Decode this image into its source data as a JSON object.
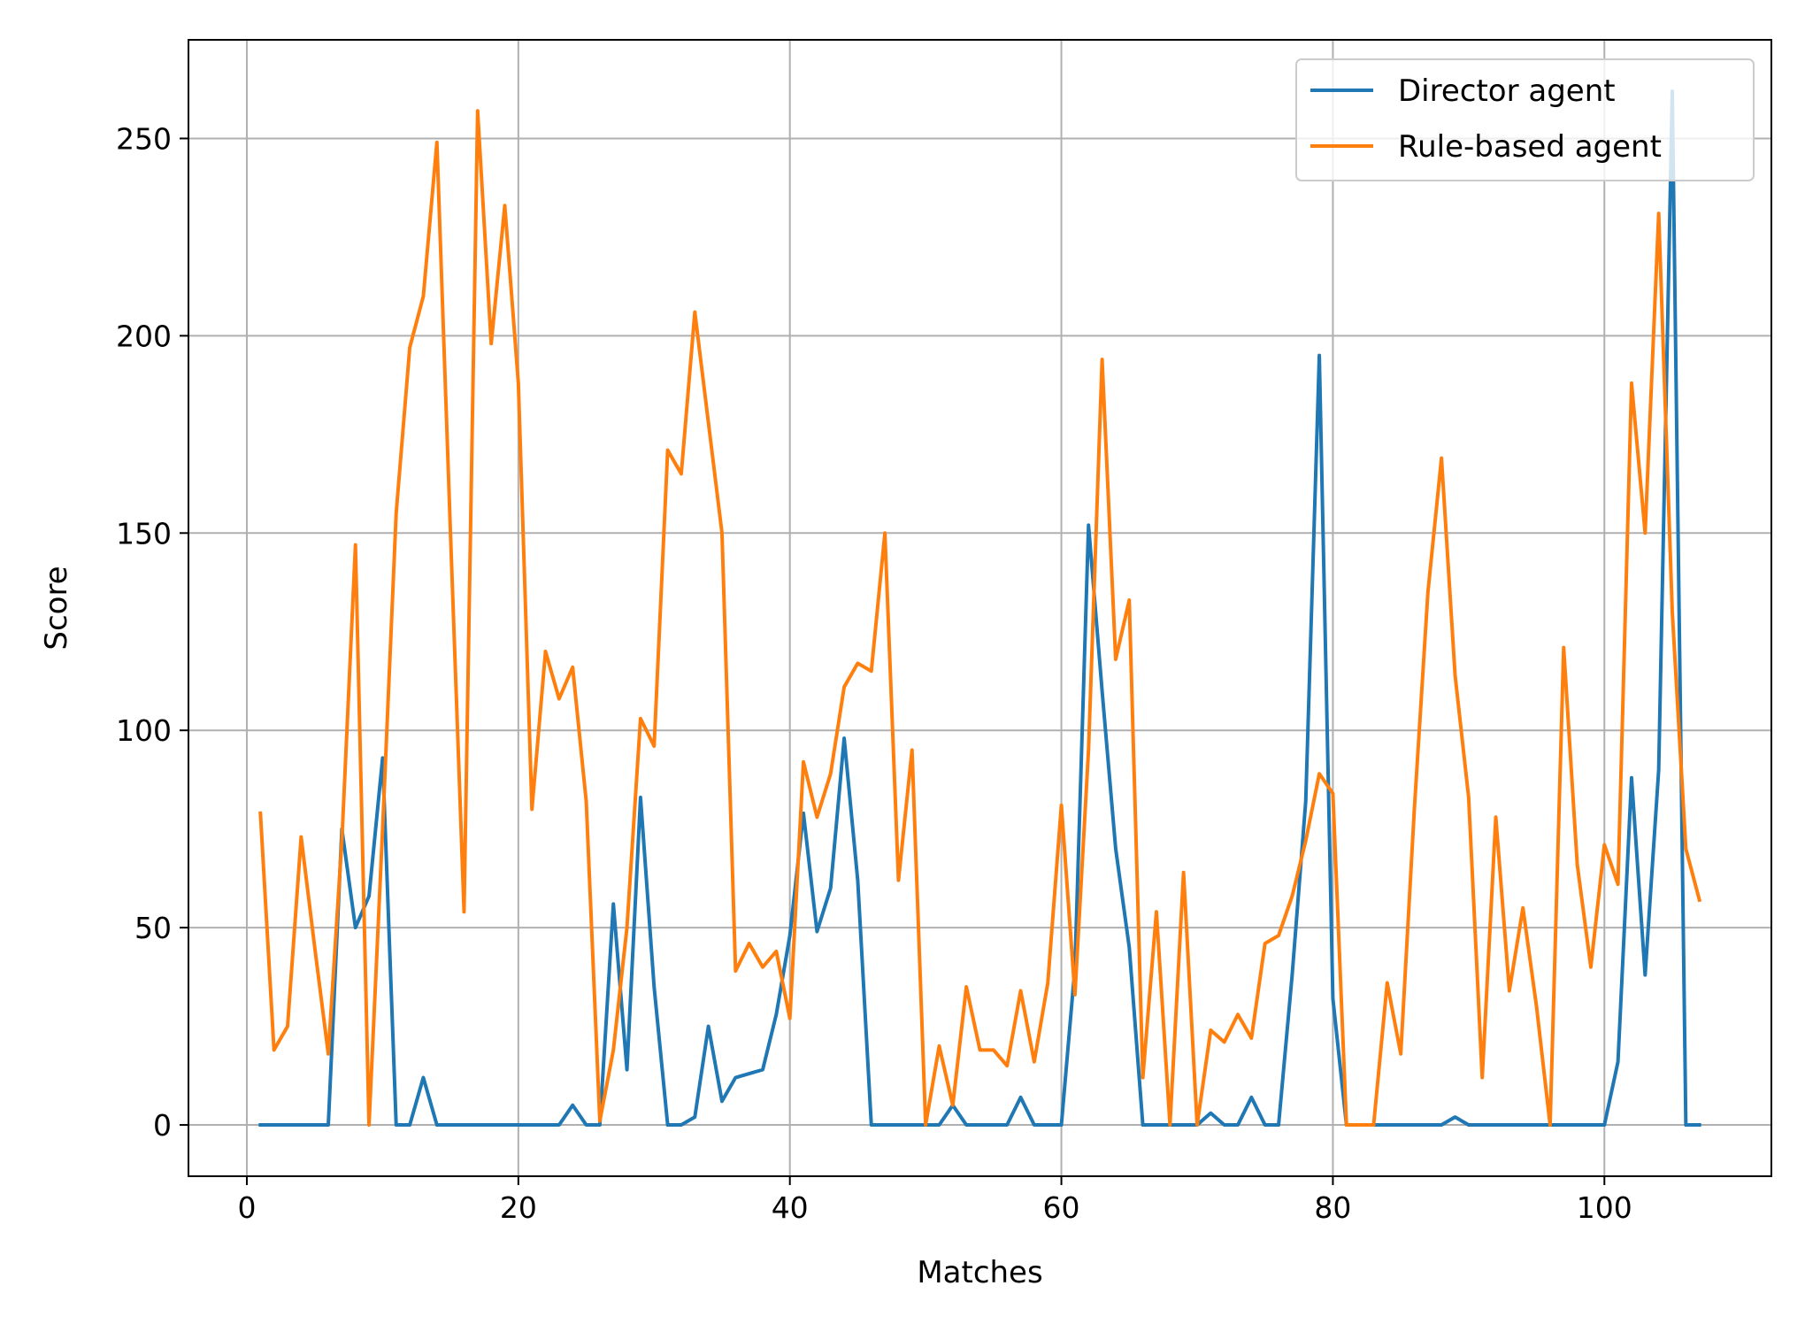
{
  "chart_data": {
    "type": "line",
    "xlabel": "Matches",
    "ylabel": "Score",
    "xlim": [
      -4.3,
      112.3
    ],
    "ylim": [
      -13,
      275
    ],
    "xticks": [
      0,
      20,
      40,
      60,
      80,
      100
    ],
    "yticks": [
      0,
      50,
      100,
      150,
      200,
      250
    ],
    "grid": true,
    "legend_position": "top-right",
    "x": [
      1,
      2,
      3,
      4,
      5,
      6,
      7,
      8,
      9,
      10,
      11,
      12,
      13,
      14,
      15,
      16,
      17,
      18,
      19,
      20,
      21,
      22,
      23,
      24,
      25,
      26,
      27,
      28,
      29,
      30,
      31,
      32,
      33,
      34,
      35,
      36,
      37,
      38,
      39,
      40,
      41,
      42,
      43,
      44,
      45,
      46,
      47,
      48,
      49,
      50,
      51,
      52,
      53,
      54,
      55,
      56,
      57,
      58,
      59,
      60,
      61,
      62,
      63,
      64,
      65,
      66,
      67,
      68,
      69,
      70,
      71,
      72,
      73,
      74,
      75,
      76,
      77,
      78,
      79,
      80,
      81,
      82,
      83,
      84,
      85,
      86,
      87,
      88,
      89,
      90,
      91,
      92,
      93,
      94,
      95,
      96,
      97,
      98,
      99,
      100,
      101,
      102,
      103,
      104,
      105,
      106,
      107
    ],
    "series": [
      {
        "name": "Director agent",
        "color": "#1f77b4",
        "values": [
          0,
          0,
          0,
          0,
          0,
          0,
          75,
          50,
          58,
          93,
          0,
          0,
          12,
          0,
          0,
          0,
          0,
          0,
          0,
          0,
          0,
          0,
          0,
          5,
          0,
          0,
          56,
          14,
          83,
          35,
          0,
          0,
          2,
          25,
          6,
          12,
          13,
          14,
          28,
          48,
          79,
          49,
          60,
          98,
          62,
          0,
          0,
          0,
          0,
          0,
          0,
          5,
          0,
          0,
          0,
          0,
          7,
          0,
          0,
          0,
          40,
          152,
          110,
          70,
          45,
          0,
          0,
          0,
          0,
          0,
          3,
          0,
          0,
          7,
          0,
          0,
          38,
          82,
          195,
          32,
          0,
          0,
          0,
          0,
          0,
          0,
          0,
          0,
          2,
          0,
          0,
          0,
          0,
          0,
          0,
          0,
          0,
          0,
          0,
          0,
          16,
          88,
          38,
          90,
          262,
          0,
          0
        ]
      },
      {
        "name": "Rule-based agent",
        "color": "#ff7f0e",
        "values": [
          79,
          19,
          25,
          73,
          45,
          18,
          72,
          147,
          0,
          75,
          155,
          197,
          210,
          249,
          150,
          54,
          257,
          198,
          233,
          188,
          80,
          120,
          108,
          116,
          82,
          1,
          19,
          50,
          103,
          96,
          171,
          165,
          206,
          178,
          150,
          39,
          46,
          40,
          44,
          27,
          92,
          78,
          89,
          111,
          117,
          115,
          150,
          62,
          95,
          0,
          20,
          5,
          35,
          19,
          19,
          15,
          34,
          16,
          36,
          81,
          33,
          95,
          194,
          118,
          133,
          12,
          54,
          0,
          64,
          0,
          24,
          21,
          28,
          22,
          46,
          48,
          58,
          72,
          89,
          84,
          0,
          0,
          0,
          36,
          18,
          80,
          135,
          169,
          114,
          83,
          12,
          78,
          34,
          55,
          30,
          0,
          121,
          66,
          40,
          71,
          61,
          188,
          150,
          231,
          130,
          70,
          57
        ]
      }
    ]
  }
}
